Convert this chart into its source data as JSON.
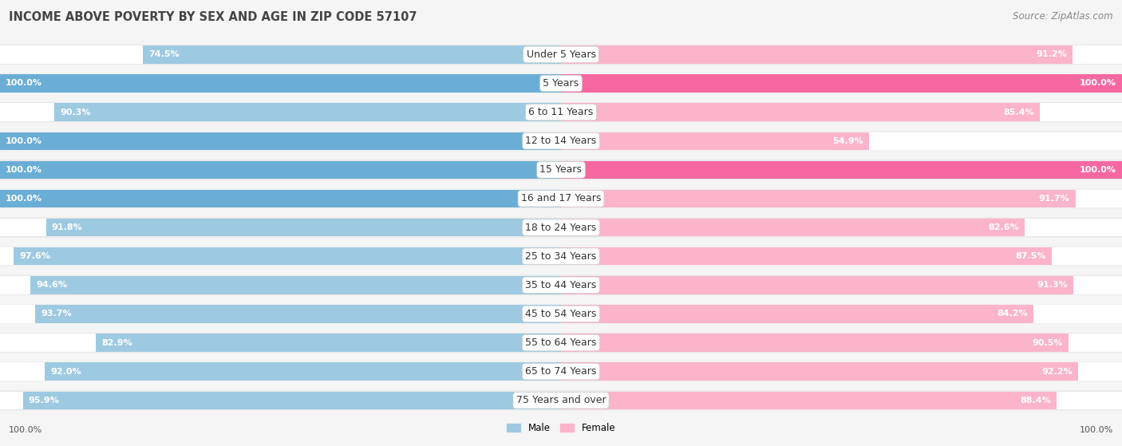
{
  "title": "INCOME ABOVE POVERTY BY SEX AND AGE IN ZIP CODE 57107",
  "source": "Source: ZipAtlas.com",
  "categories": [
    "Under 5 Years",
    "5 Years",
    "6 to 11 Years",
    "12 to 14 Years",
    "15 Years",
    "16 and 17 Years",
    "18 to 24 Years",
    "25 to 34 Years",
    "35 to 44 Years",
    "45 to 54 Years",
    "55 to 64 Years",
    "65 to 74 Years",
    "75 Years and over"
  ],
  "male_values": [
    74.5,
    100.0,
    90.3,
    100.0,
    100.0,
    100.0,
    91.8,
    97.6,
    94.6,
    93.7,
    82.9,
    92.0,
    95.9
  ],
  "female_values": [
    91.2,
    100.0,
    85.4,
    54.9,
    100.0,
    91.7,
    82.6,
    87.5,
    91.3,
    84.2,
    90.5,
    92.2,
    88.4
  ],
  "male_color_full": "#6aaed6",
  "male_color_partial": "#9ecae1",
  "female_color_full": "#f768a1",
  "female_color_partial": "#fbb4c9",
  "male_label": "Male",
  "female_label": "Female",
  "title_fontsize": 10.5,
  "source_fontsize": 8.5,
  "label_fontsize": 9,
  "value_fontsize": 8,
  "bar_height": 0.62,
  "row_bg_odd": "#e8e8e8",
  "row_bg_even": "#f0f0f0",
  "background_color": "#f5f5f5",
  "footer_male_value": "100.0%",
  "footer_female_value": "100.0%"
}
